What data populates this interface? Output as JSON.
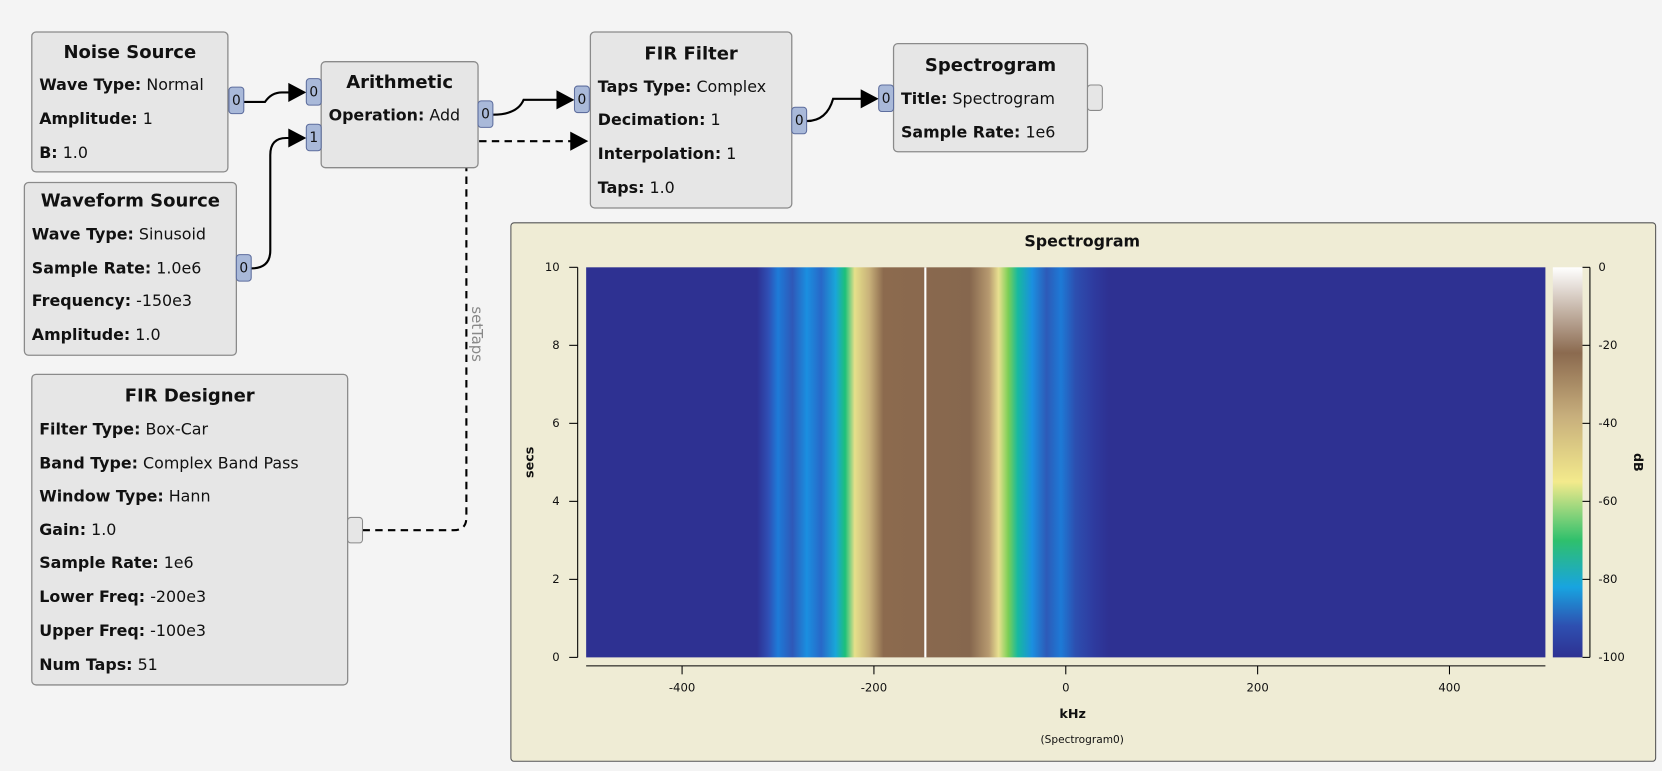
{
  "blocks": [
    {
      "title": "Noise Source",
      "params": [
        {
          "key": "Wave Type:",
          "value": "Normal"
        },
        {
          "key": "Amplitude:",
          "value": "1"
        },
        {
          "key": "B:",
          "value": "1.0"
        }
      ],
      "inputs": [],
      "outputs": [
        "0"
      ]
    },
    {
      "title": "Waveform Source",
      "params": [
        {
          "key": "Wave Type:",
          "value": "Sinusoid"
        },
        {
          "key": "Sample Rate:",
          "value": "1.0e6"
        },
        {
          "key": "Frequency:",
          "value": "-150e3"
        },
        {
          "key": "Amplitude:",
          "value": "1.0"
        }
      ],
      "inputs": [],
      "outputs": [
        "0"
      ]
    },
    {
      "title": "FIR Designer",
      "params": [
        {
          "key": "Filter Type:",
          "value": "Box-Car"
        },
        {
          "key": "Band Type:",
          "value": "Complex Band Pass"
        },
        {
          "key": "Window Type:",
          "value": "Hann"
        },
        {
          "key": "Gain:",
          "value": "1.0"
        },
        {
          "key": "Sample Rate:",
          "value": "1e6"
        },
        {
          "key": "Lower Freq:",
          "value": "-200e3"
        },
        {
          "key": "Upper Freq:",
          "value": "-100e3"
        },
        {
          "key": "Num Taps:",
          "value": "51"
        }
      ],
      "inputs": [],
      "outputs": []
    },
    {
      "title": "Arithmetic",
      "params": [
        {
          "key": "Operation:",
          "value": "Add"
        }
      ],
      "inputs": [
        "0",
        "1"
      ],
      "outputs": [
        "0"
      ]
    },
    {
      "title": "FIR Filter",
      "params": [
        {
          "key": "Taps Type:",
          "value": "Complex"
        },
        {
          "key": "Decimation:",
          "value": "1"
        },
        {
          "key": "Interpolation:",
          "value": "1"
        },
        {
          "key": "Taps:",
          "value": "1.0"
        }
      ],
      "inputs": [
        "0"
      ],
      "outputs": [
        "0"
      ]
    },
    {
      "title": "Spectrogram",
      "params": [
        {
          "key": "Title:",
          "value": "Spectrogram"
        },
        {
          "key": "Sample Rate:",
          "value": "1e6"
        }
      ],
      "inputs": [
        "0"
      ],
      "outputs": []
    }
  ],
  "connection_label": "setTaps",
  "spectrogram": {
    "title": "Spectrogram",
    "xlabel": "kHz",
    "ylabel": "secs",
    "colorbar_label": "dB",
    "caption": "(Spectrogram0)",
    "xlim": [
      -500,
      500
    ],
    "xticks": [
      -400,
      -200,
      0,
      200,
      400
    ],
    "ylim": [
      0,
      10
    ],
    "yticks": [
      0,
      2,
      4,
      6,
      8,
      10
    ],
    "clim": [
      -100,
      0
    ],
    "cticks": [
      0,
      -20,
      -40,
      -60,
      -80,
      -100
    ]
  }
}
